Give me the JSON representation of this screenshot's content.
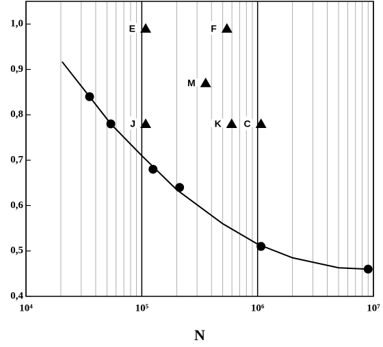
{
  "chart_data": {
    "type": "scatter",
    "x_label": "N",
    "xscale": "log",
    "xlim": [
      10000,
      10000000
    ],
    "ylim": [
      0.4,
      1.05
    ],
    "xticks": [
      {
        "value": 10000,
        "label": "10⁴"
      },
      {
        "value": 100000,
        "label": "10⁵"
      },
      {
        "value": 1000000,
        "label": "10⁶"
      },
      {
        "value": 10000000,
        "label": "10⁷"
      }
    ],
    "x_minor_ticks": [
      20000,
      30000,
      40000,
      50000,
      60000,
      70000,
      80000,
      90000,
      200000,
      300000,
      400000,
      500000,
      600000,
      700000,
      800000,
      900000,
      2000000,
      3000000,
      4000000,
      5000000,
      6000000,
      7000000,
      8000000,
      9000000
    ],
    "yticks": [
      {
        "value": 0.4,
        "label": "0,4"
      },
      {
        "value": 0.5,
        "label": "0,5"
      },
      {
        "value": 0.6,
        "label": "0,6"
      },
      {
        "value": 0.7,
        "label": "0,7"
      },
      {
        "value": 0.8,
        "label": "0,8"
      },
      {
        "value": 0.9,
        "label": "0,9"
      },
      {
        "value": 1.0,
        "label": "1,0"
      }
    ],
    "grid": true,
    "series": [
      {
        "marker": "circle",
        "color": "#000000",
        "x": [
          35400,
          54000,
          125000,
          212000,
          1070000,
          9000000
        ],
        "values": [
          0.84,
          0.78,
          0.68,
          0.64,
          0.51,
          0.46
        ]
      },
      {
        "marker": "triangle",
        "color": "#000000",
        "x": [
          108000,
          543000,
          356000,
          108000,
          597000,
          1070000
        ],
        "values": [
          0.99,
          0.99,
          0.87,
          0.78,
          0.78,
          0.78
        ],
        "labels": [
          "E",
          "F",
          "M",
          "J",
          "K",
          "C"
        ]
      },
      {
        "marker": "line",
        "color": "#000000",
        "x": [
          20500,
          35400,
          54000,
          100000,
          200000,
          500000,
          1000000,
          2000000,
          5000000,
          9000000
        ],
        "values": [
          0.917,
          0.84,
          0.78,
          0.71,
          0.635,
          0.56,
          0.515,
          0.485,
          0.463,
          0.46
        ]
      }
    ]
  }
}
